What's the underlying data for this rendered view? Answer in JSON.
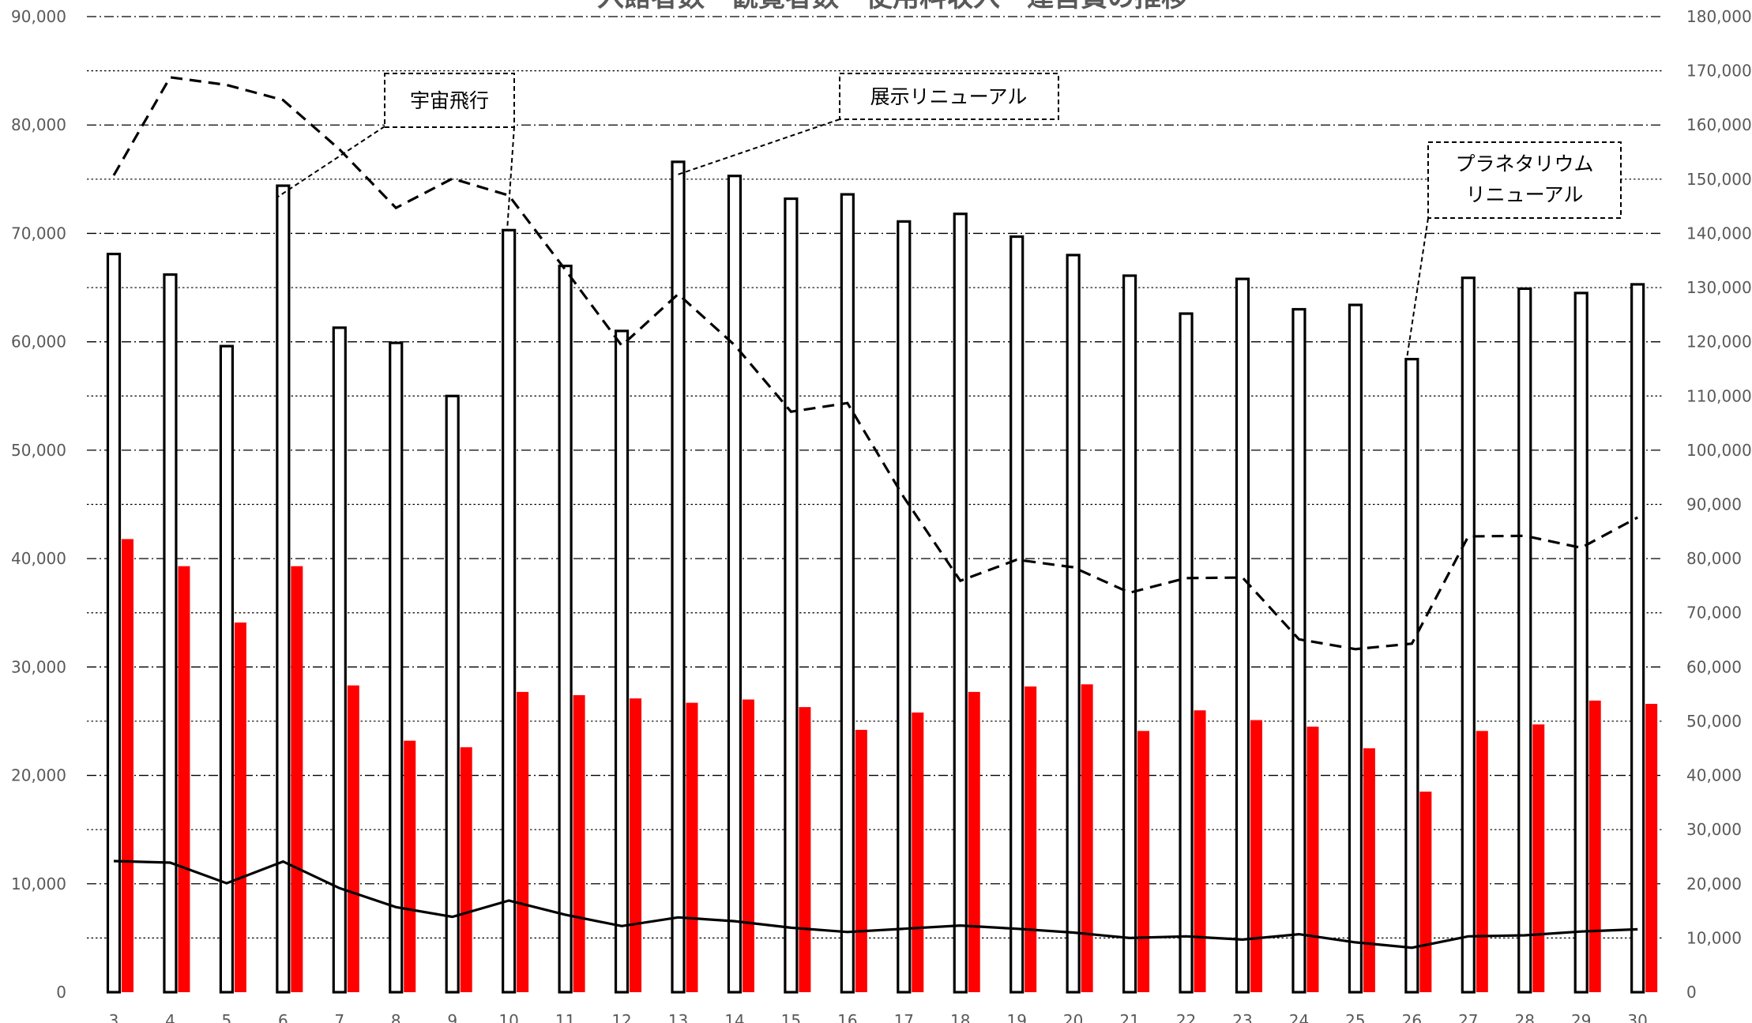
{
  "chart_data": {
    "type": "bar",
    "title": "入館者数・観覧者数・使用料収入・運営費の推移",
    "categories": [
      "3",
      "4",
      "5",
      "6",
      "7",
      "8",
      "9",
      "10",
      "11",
      "12",
      "13",
      "14",
      "15",
      "16",
      "17",
      "18",
      "19",
      "20",
      "21",
      "22",
      "23",
      "24",
      "25",
      "26",
      "27",
      "28",
      "29",
      "30"
    ],
    "left_axis": {
      "range": [
        0,
        90000
      ],
      "ticks": [
        "0",
        "10,000",
        "20,000",
        "30,000",
        "40,000",
        "50,000",
        "60,000",
        "70,000",
        "80,000",
        "90,000"
      ]
    },
    "right_axis": {
      "range": [
        0,
        180000
      ],
      "ticks": [
        "0",
        "10,000",
        "20,000",
        "30,000",
        "40,000",
        "50,000",
        "60,000",
        "70,000",
        "80,000",
        "90,000",
        "100,000",
        "110,000",
        "120,000",
        "130,000",
        "140,000",
        "150,000",
        "160,000",
        "170,000",
        "180,000"
      ]
    },
    "grid": true,
    "series": [
      {
        "type": "bar",
        "style": "outlined-white",
        "axis": "left",
        "values": [
          68100,
          66200,
          59600,
          74400,
          61300,
          59900,
          55000,
          70300,
          67000,
          61000,
          76600,
          75300,
          73200,
          73600,
          71100,
          71800,
          69700,
          68000,
          66100,
          62600,
          65800,
          63000,
          63400,
          58400,
          65900,
          64900,
          64500,
          65300
        ]
      },
      {
        "type": "bar",
        "style": "filled",
        "color": "#ff0000",
        "axis": "left",
        "values": [
          41800,
          39300,
          34100,
          39300,
          28300,
          23200,
          22600,
          27700,
          27400,
          27100,
          26700,
          27000,
          26300,
          24200,
          25800,
          27700,
          28200,
          28400,
          24100,
          26000,
          25100,
          24500,
          22500,
          18500,
          24100,
          24700,
          26900,
          26600
        ]
      },
      {
        "type": "line",
        "style": "dashed",
        "color": "#000000",
        "axis": "right",
        "values": [
          150700,
          168800,
          167400,
          164600,
          155500,
          144700,
          150100,
          147000,
          133300,
          119300,
          128800,
          119400,
          107100,
          108700,
          91300,
          75900,
          79800,
          78400,
          73700,
          76400,
          76500,
          65100,
          63300,
          64300,
          84100,
          84200,
          82000,
          87600
        ]
      },
      {
        "type": "line",
        "style": "solid",
        "color": "#000000",
        "axis": "right",
        "values": [
          24200,
          23900,
          20100,
          24100,
          19200,
          15700,
          13900,
          16900,
          14300,
          12200,
          13800,
          13100,
          11900,
          11100,
          11700,
          12300,
          11700,
          11000,
          10000,
          10300,
          9700,
          10700,
          9200,
          8200,
          10300,
          10500,
          11200,
          11600
        ]
      }
    ],
    "annotations": [
      {
        "text": [
          "宇宙飛行"
        ],
        "category": "10"
      },
      {
        "text": [
          "展示リニューアル"
        ],
        "category": "13"
      },
      {
        "text": [
          "プラネタリウム",
          "リニューアル"
        ],
        "category": "26"
      }
    ]
  }
}
